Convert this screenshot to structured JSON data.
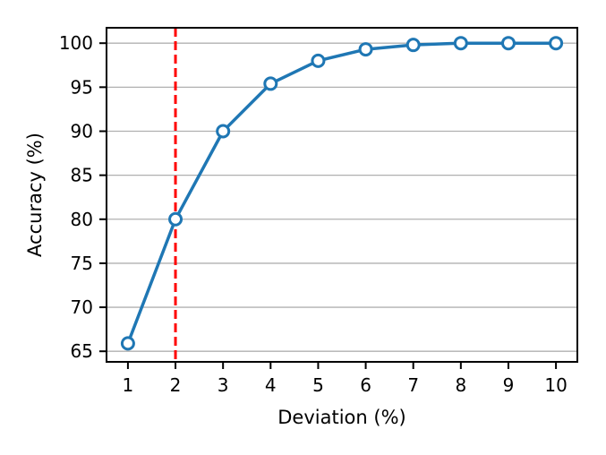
{
  "chart_data": {
    "type": "line",
    "title": "",
    "xlabel": "Deviation (%)",
    "ylabel": "Accuracy (%)",
    "x": [
      1,
      2,
      3,
      4,
      5,
      6,
      7,
      8,
      9,
      10
    ],
    "series": [
      {
        "name": "Accuracy",
        "values": [
          65.9,
          80.0,
          90.0,
          95.4,
          98.0,
          99.3,
          99.8,
          100.0,
          100.0,
          100.0
        ],
        "color": "#1f77b4",
        "line_width": 3.5,
        "marker": "open-circle",
        "marker_fill": "#ffffff",
        "marker_radius": 6.5,
        "marker_edge_width": 3
      }
    ],
    "xticks": [
      1,
      2,
      3,
      4,
      5,
      6,
      7,
      8,
      9,
      10
    ],
    "yticks": [
      65,
      70,
      75,
      80,
      85,
      90,
      95,
      100
    ],
    "xlim": [
      0.55,
      10.45
    ],
    "ylim": [
      63.8,
      101.75
    ],
    "grid": {
      "horizontal": true,
      "vertical": false,
      "color": "#b0b0b0",
      "line_width": 1.3
    },
    "annotations": [
      {
        "type": "vline",
        "x": 2,
        "color": "#ff0000",
        "style": "dashed",
        "line_width": 3
      }
    ],
    "legend": null
  },
  "style_colors": {
    "background": "#ffffff",
    "spine": "#000000",
    "text": "#000000"
  }
}
